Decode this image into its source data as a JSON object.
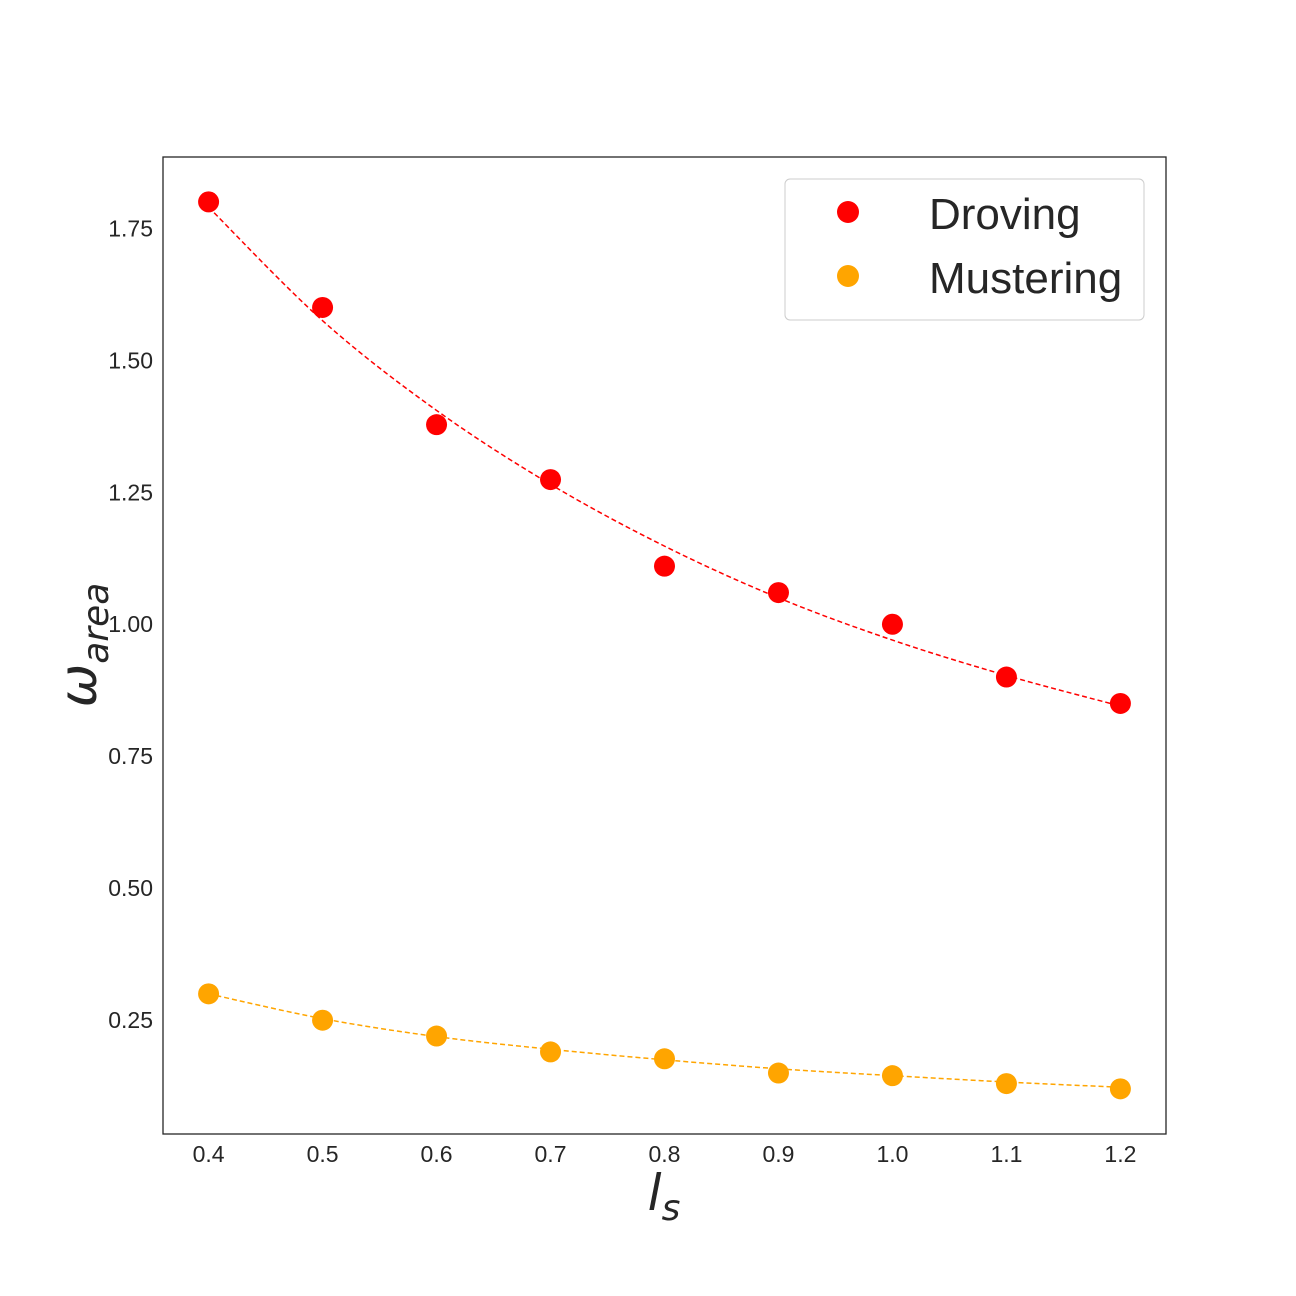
{
  "chart_data": {
    "type": "scatter",
    "xlabel": {
      "base": "l",
      "sub": "s"
    },
    "ylabel": {
      "base": "ω",
      "sub": "area"
    },
    "xlim": [
      0.36,
      1.24
    ],
    "ylim": [
      0.0345,
      1.885
    ],
    "xticks": [
      0.4,
      0.5,
      0.6,
      0.7,
      0.8,
      0.9,
      1.0,
      1.1,
      1.2
    ],
    "xtick_labels": [
      "0.4",
      "0.5",
      "0.6",
      "0.7",
      "0.8",
      "0.9",
      "1.0",
      "1.1",
      "1.2"
    ],
    "yticks": [
      0.25,
      0.5,
      0.75,
      1.0,
      1.25,
      1.5,
      1.75
    ],
    "ytick_labels": [
      "0.25",
      "0.50",
      "0.75",
      "1.00",
      "1.25",
      "1.50",
      "1.75"
    ],
    "grid": false,
    "legend_position": "top-right",
    "series": [
      {
        "name": "Droving",
        "color": "#ff0000",
        "x": [
          0.4,
          0.5,
          0.6,
          0.7,
          0.8,
          0.9,
          1.0,
          1.1,
          1.2
        ],
        "y": [
          1.8,
          1.6,
          1.378,
          1.274,
          1.11,
          1.06,
          1.0,
          0.9,
          0.85
        ],
        "fit": {
          "style": "dashed",
          "x": [
            0.4,
            0.5,
            0.6,
            0.7,
            0.8,
            0.9,
            1.0,
            1.1,
            1.2
          ],
          "y": [
            1.79,
            1.575,
            1.405,
            1.265,
            1.148,
            1.05,
            0.97,
            0.903,
            0.845
          ]
        }
      },
      {
        "name": "Mustering",
        "color": "#ffa500",
        "x": [
          0.4,
          0.5,
          0.6,
          0.7,
          0.8,
          0.9,
          1.0,
          1.1,
          1.2
        ],
        "y": [
          0.3,
          0.25,
          0.22,
          0.19,
          0.177,
          0.15,
          0.145,
          0.13,
          0.12
        ],
        "fit": {
          "style": "dashed",
          "x": [
            0.4,
            0.5,
            0.6,
            0.7,
            0.8,
            0.9,
            1.0,
            1.1,
            1.2
          ],
          "y": [
            0.3,
            0.253,
            0.219,
            0.195,
            0.175,
            0.158,
            0.145,
            0.133,
            0.123
          ]
        }
      }
    ]
  }
}
